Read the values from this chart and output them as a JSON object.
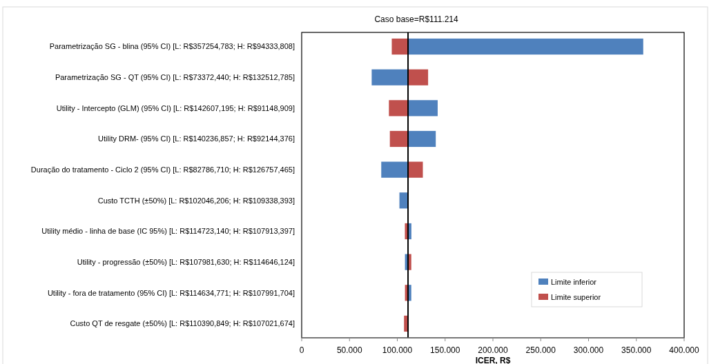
{
  "chart_data": {
    "type": "bar",
    "orientation": "horizontal",
    "xlabel": "ICER, R$",
    "categories": [
      "Parametrização SG - blina (95% CI) [L: R$357254,783; H: R$94333,808]",
      "Parametrização SG - QT (95% CI) [L: R$73372,440; H: R$132512,785]",
      "Utility - Intercepto (GLM) (95% CI) [L: R$142607,195; H: R$91148,909]",
      "Utility DRM- (95% CI) [L: R$140236,857; H: R$92144,376]",
      "Duração do tratamento - Ciclo 2 (95% CI) [L: R$82786,710; H: R$126757,465]",
      "Custo TCTH  (±50%) [L: R$102046,206; H: R$109338,393]",
      "Utility médio - linha de base (IC 95%) [L: R$114723,140; H: R$107913,397]",
      "Utility - progressão (±50%) [L: R$107981,630; H: R$114646,124]",
      "Utility - fora de tratamento (95% CI) [L: R$114634,771; H: R$107991,704]",
      "Custo QT de resgate  (±50%) [L: R$110390,849; H: R$107021,674]"
    ],
    "series": [
      {
        "name": "Limite inferior",
        "color": "#4f81bd",
        "base": [
          111214,
          111214,
          111214,
          111214,
          111214,
          111214,
          111214,
          111214,
          111214,
          null
        ],
        "values": [
          246000,
          -38000,
          31000,
          29000,
          -28000,
          -9000,
          3500,
          -3200,
          3400,
          null
        ]
      },
      {
        "name": "Limite superior",
        "color": "#c0504d",
        "base": [
          111214,
          111214,
          111214,
          111214,
          111214,
          null,
          111214,
          111214,
          111214,
          111214
        ],
        "values": [
          -17000,
          21000,
          -20000,
          -19000,
          15500,
          null,
          -3300,
          3400,
          -3200,
          -4200
        ]
      }
    ],
    "xlim": [
      0,
      400000
    ],
    "xticks": [
      0,
      {
        "value": 50000,
        "label": "50.000"
      },
      {
        "value": 100000,
        "label": "100.000"
      },
      {
        "value": 150000,
        "label": "150.000"
      },
      {
        "value": 200000,
        "label": "200.000"
      },
      {
        "value": 250000,
        "label": "250.000"
      },
      {
        "value": 300000,
        "label": "300.000"
      },
      {
        "value": 350000,
        "label": "350.000"
      },
      {
        "value": 400000,
        "label": "400.000"
      }
    ],
    "ref_lines": [
      {
        "axis": "x",
        "value": 111214,
        "label": "Caso base=R$111.214",
        "color": "#000000"
      }
    ],
    "legend": "bottom right"
  }
}
